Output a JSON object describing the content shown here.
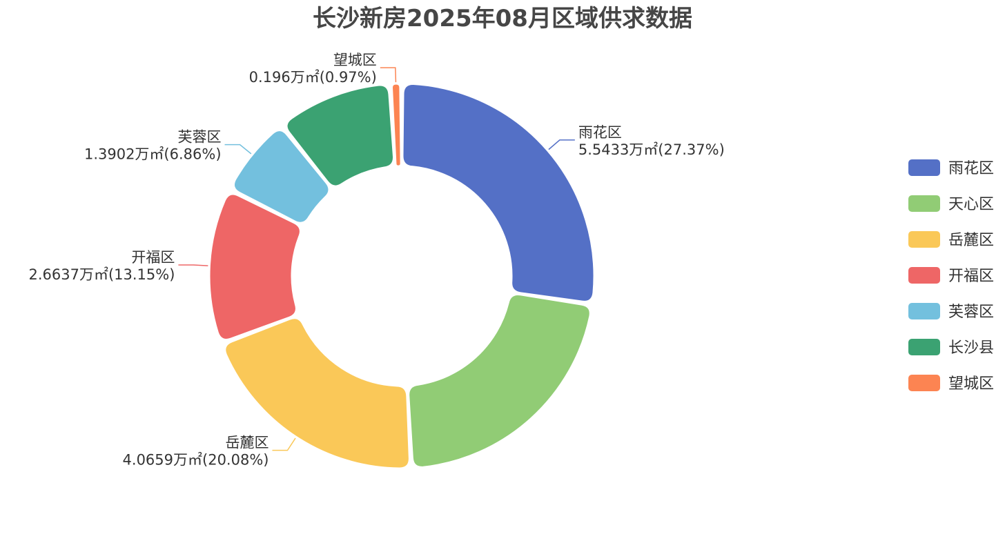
{
  "chart_data": {
    "type": "pie",
    "title": "长沙新房2025年08月区域供求数据",
    "unit": "万㎡",
    "legend_position": "right",
    "series": [
      {
        "name": "雨花区",
        "value": 5.5433,
        "percent": "27.37%",
        "value_label": "5.5433万㎡(27.37%)",
        "color": "#5470c6"
      },
      {
        "name": "天心区",
        "value": 4.4203,
        "percent": "21.82%",
        "value_label": "",
        "color": "#91cc75"
      },
      {
        "name": "岳麓区",
        "value": 4.0659,
        "percent": "20.08%",
        "value_label": "4.0659万㎡(20.08%)",
        "color": "#fac858"
      },
      {
        "name": "开福区",
        "value": 2.6637,
        "percent": "13.15%",
        "value_label": "2.6637万㎡(13.15%)",
        "color": "#ee6666"
      },
      {
        "name": "芙蓉区",
        "value": 1.3902,
        "percent": "6.86%",
        "value_label": "1.3902万㎡(6.86%)",
        "color": "#73c0de"
      },
      {
        "name": "长沙县",
        "value": 1.9742,
        "percent": "9.75%",
        "value_label": "",
        "color": "#3ba272"
      },
      {
        "name": "望城区",
        "value": 0.196,
        "percent": "0.97%",
        "value_label": "0.196万㎡(0.97%)",
        "color": "#fc8452"
      }
    ]
  }
}
